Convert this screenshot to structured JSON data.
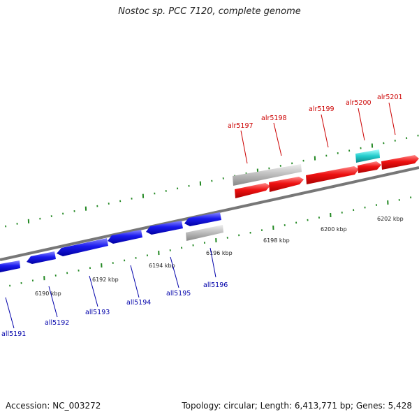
{
  "title": "Nostoc sp. PCC 7120, complete genome",
  "footer": {
    "accession": "Accession: NC_003272",
    "summary": "Topology: circular; Length: 6,413,771 bp; Genes: 5,428"
  },
  "kbp_labels": [
    "6190 kbp",
    "6192 kbp",
    "6194 kbp",
    "6196 kbp",
    "6198 kbp",
    "6200 kbp",
    "6202 kbp"
  ],
  "genes_reverse": [
    "all5191",
    "all5192",
    "all5193",
    "all5194",
    "all5195",
    "all5196"
  ],
  "genes_forward": [
    "alr5197",
    "alr5198",
    "alr5199",
    "alr5200",
    "alr5201"
  ],
  "colors": {
    "forward_gene": "#ee1111",
    "reverse_gene": "#1a1aee",
    "other_feature": "#bbbbbb",
    "rna_feature": "#22cccc",
    "tick": "#228822",
    "backbone": "#777777",
    "forward_label": "#cc0000",
    "reverse_label": "#0000aa"
  }
}
